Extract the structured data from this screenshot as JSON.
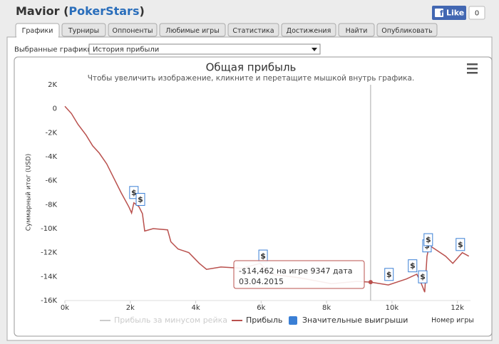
{
  "header": {
    "title_prefix": "Mavior (",
    "site": "PokerStars",
    "title_suffix": ")",
    "like": "Like",
    "like_count": "0"
  },
  "tabs": [
    "Графики",
    "Турниры",
    "Оппоненты",
    "Любимые игры",
    "Статистика",
    "Достижения",
    "Найти",
    "Опубликовать"
  ],
  "selector": {
    "label": "Выбранные графики:",
    "value": "История прибыли"
  },
  "chart_data": {
    "type": "line",
    "title": "Общая прибыль",
    "subtitle": "Чтобы увеличить изображение, кликните и перетащите мышкой внутрь графика.",
    "y_label": "Суммарный итог (USD)",
    "x_label": "Номер игры",
    "xlim": [
      0,
      12400
    ],
    "ylim": [
      -16000,
      2000
    ],
    "xticks": [
      {
        "value": 0,
        "label": "0k"
      },
      {
        "value": 2000,
        "label": "2k"
      },
      {
        "value": 4000,
        "label": "4k"
      },
      {
        "value": 6000,
        "label": "6k"
      },
      {
        "value": 8000,
        "label": "8k"
      },
      {
        "value": 10000,
        "label": "10k"
      },
      {
        "value": 12000,
        "label": "12k"
      }
    ],
    "yticks": [
      {
        "value": 2000,
        "label": "2K"
      },
      0,
      {
        "value": -2000,
        "label": "-2K"
      },
      {
        "value": -4000,
        "label": "-4K"
      },
      {
        "value": -6000,
        "label": "-6K"
      },
      {
        "value": -8000,
        "label": "-8K"
      },
      {
        "value": -10000,
        "label": "-10K"
      },
      {
        "value": -12000,
        "label": "-12K"
      },
      {
        "value": -14000,
        "label": "-14K"
      },
      {
        "value": -16000,
        "label": "-16K"
      }
    ],
    "x": [
      0,
      200,
      400,
      650,
      850,
      1050,
      1280,
      1500,
      1720,
      1960,
      2040,
      2110,
      2260,
      2370,
      2440,
      2700,
      3140,
      3240,
      3460,
      3790,
      4110,
      4330,
      4770,
      5420,
      5970,
      6290,
      7170,
      8150,
      8910,
      9347,
      9890,
      10440,
      10760,
      10870,
      11000,
      11070,
      11140,
      11310,
      11640,
      11860,
      12150,
      12350
    ],
    "series": [
      {
        "name": "Прибыль за минусом рейка",
        "color": "#cccccc",
        "visible": false
      },
      {
        "name": "Прибыль",
        "color": "#b9504d",
        "visible": true,
        "values": [
          200,
          -400,
          -1300,
          -2200,
          -3100,
          -3700,
          -4600,
          -5800,
          -7000,
          -8200,
          -8700,
          -7850,
          -8150,
          -8750,
          -10200,
          -10000,
          -10100,
          -11100,
          -11700,
          -12000,
          -12900,
          -13400,
          -13200,
          -13300,
          -12900,
          -13800,
          -14100,
          -14600,
          -14400,
          -14462,
          -14700,
          -14200,
          -13800,
          -14400,
          -15300,
          -12300,
          -11400,
          -11700,
          -12300,
          -12900,
          -12000,
          -12300
        ]
      }
    ],
    "flags": {
      "name": "Значительные выигрыши",
      "color": "#3a7fd5",
      "label": "$",
      "x": [
        2110,
        2310,
        6060,
        9910,
        10630,
        10940,
        11070,
        11110,
        12090
      ]
    },
    "tooltip": {
      "x": 9347,
      "y": -14462,
      "lines": [
        "-$14,462 на игре 9347 дата",
        "03.04.2015"
      ]
    },
    "legend_position": "bottom"
  }
}
